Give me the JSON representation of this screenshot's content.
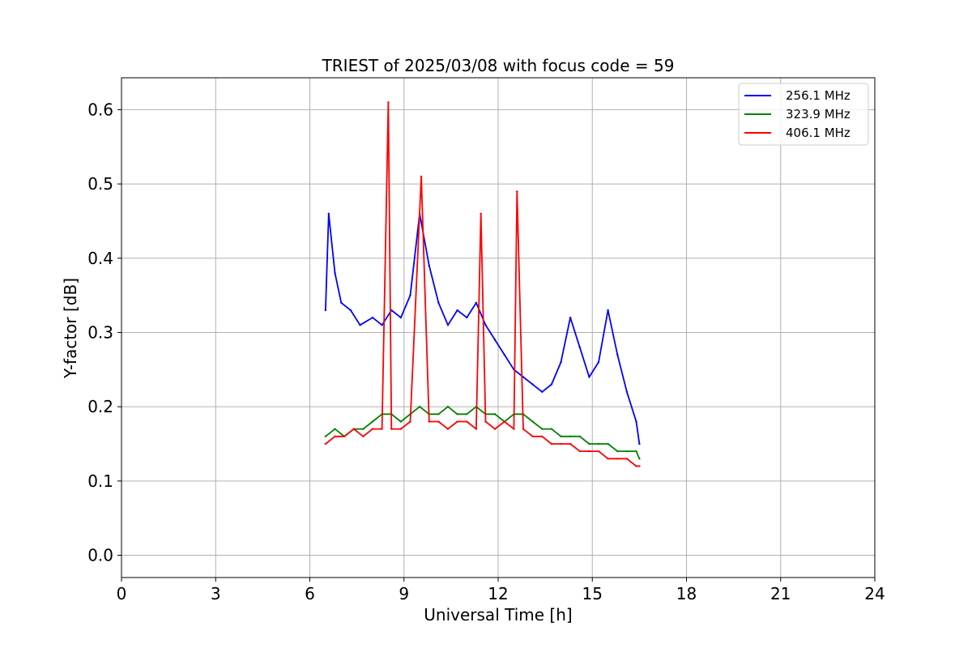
{
  "chart_data": {
    "type": "line",
    "title": "TRIEST of 2025/03/08 with focus code = 59",
    "xlabel": "Universal Time [h]",
    "ylabel": "Y-factor [dB]",
    "xlim": [
      0,
      24
    ],
    "ylim": [
      -0.03,
      0.643
    ],
    "xticks": [
      "0",
      "3",
      "6",
      "9",
      "12",
      "15",
      "18",
      "21",
      "24"
    ],
    "yticks": [
      "0.0",
      "0.1",
      "0.2",
      "0.3",
      "0.4",
      "0.5",
      "0.6"
    ],
    "grid": true,
    "legend_position": "top-right",
    "series": [
      {
        "name": "256.1 MHz",
        "color": "#0000ff",
        "x": [
          6.5,
          6.6,
          6.8,
          7.0,
          7.3,
          7.6,
          8.0,
          8.3,
          8.6,
          8.9,
          9.2,
          9.5,
          9.8,
          10.1,
          10.4,
          10.7,
          11.0,
          11.3,
          11.6,
          11.9,
          12.2,
          12.5,
          12.8,
          13.1,
          13.4,
          13.7,
          14.0,
          14.3,
          14.6,
          14.9,
          15.2,
          15.5,
          15.8,
          16.1,
          16.4,
          16.5
        ],
        "y": [
          0.33,
          0.46,
          0.38,
          0.34,
          0.33,
          0.31,
          0.32,
          0.31,
          0.33,
          0.32,
          0.35,
          0.46,
          0.39,
          0.34,
          0.31,
          0.33,
          0.32,
          0.34,
          0.31,
          0.29,
          0.27,
          0.25,
          0.24,
          0.23,
          0.22,
          0.23,
          0.26,
          0.32,
          0.28,
          0.24,
          0.26,
          0.33,
          0.27,
          0.22,
          0.18,
          0.15
        ]
      },
      {
        "name": "323.9 MHz",
        "color": "#008000",
        "x": [
          6.5,
          6.8,
          7.1,
          7.4,
          7.7,
          8.0,
          8.3,
          8.6,
          8.9,
          9.2,
          9.5,
          9.8,
          10.1,
          10.4,
          10.7,
          11.0,
          11.3,
          11.6,
          11.9,
          12.2,
          12.5,
          12.8,
          13.1,
          13.4,
          13.7,
          14.0,
          14.3,
          14.6,
          14.9,
          15.2,
          15.5,
          15.8,
          16.1,
          16.4,
          16.5
        ],
        "y": [
          0.16,
          0.17,
          0.16,
          0.17,
          0.17,
          0.18,
          0.19,
          0.19,
          0.18,
          0.19,
          0.2,
          0.19,
          0.19,
          0.2,
          0.19,
          0.19,
          0.2,
          0.19,
          0.19,
          0.18,
          0.19,
          0.19,
          0.18,
          0.17,
          0.17,
          0.16,
          0.16,
          0.16,
          0.15,
          0.15,
          0.15,
          0.14,
          0.14,
          0.14,
          0.13
        ]
      },
      {
        "name": "406.1 MHz",
        "color": "#ff0000",
        "x": [
          6.5,
          6.8,
          7.1,
          7.4,
          7.7,
          8.0,
          8.3,
          8.5,
          8.6,
          8.9,
          9.2,
          9.55,
          9.8,
          10.1,
          10.4,
          10.7,
          11.0,
          11.3,
          11.45,
          11.6,
          11.9,
          12.2,
          12.5,
          12.6,
          12.8,
          13.1,
          13.4,
          13.7,
          14.0,
          14.3,
          14.6,
          14.9,
          15.2,
          15.5,
          15.8,
          16.1,
          16.4,
          16.5
        ],
        "y": [
          0.15,
          0.16,
          0.16,
          0.17,
          0.16,
          0.17,
          0.17,
          0.61,
          0.17,
          0.17,
          0.18,
          0.51,
          0.18,
          0.18,
          0.17,
          0.18,
          0.18,
          0.17,
          0.46,
          0.18,
          0.17,
          0.18,
          0.17,
          0.49,
          0.17,
          0.16,
          0.16,
          0.15,
          0.15,
          0.15,
          0.14,
          0.14,
          0.14,
          0.13,
          0.13,
          0.13,
          0.12,
          0.12
        ]
      }
    ]
  }
}
